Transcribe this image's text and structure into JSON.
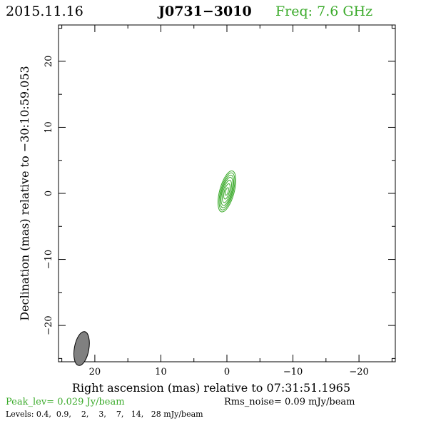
{
  "header": {
    "date": "2015.11.16",
    "source": "J0731−3010",
    "frequency": "Freq: 7.6 GHz"
  },
  "colors": {
    "contour": "#3aaa2a",
    "beam_fill": "#808080",
    "frequency_text": "#3aaa2a",
    "peak_text": "#3aaa2a"
  },
  "footer": {
    "peak": "Peak_lev=  0.029 Jy/beam",
    "rms": "Rms_noise= 0.09 mJy/beam",
    "levels": "Levels: 0.4,  0.9,    2,    3,    7,   14,   28 mJy/beam"
  },
  "chart_data": {
    "type": "contour",
    "xlabel": "Right ascension (mas) relative to 07:31:51.1965",
    "ylabel": "Declination (mas) relative to −30:10:59.053",
    "xlim": [
      25.5,
      -25.5
    ],
    "ylim": [
      -25.5,
      25.5
    ],
    "x_ticks": [
      20,
      10,
      0,
      -10,
      -20
    ],
    "y_ticks": [
      20,
      10,
      0,
      -10,
      -20
    ],
    "x_tick_labels": [
      "20",
      "10",
      "0",
      "−10",
      "−20"
    ],
    "y_tick_labels": [
      "20",
      "10",
      "0",
      "−10",
      "−20"
    ],
    "levels_mJy": [
      0.4,
      0.9,
      2,
      3,
      7,
      14,
      28
    ],
    "peak_Jy_per_beam": 0.029,
    "rms_mJy_per_beam": 0.09,
    "source_center": [
      0.0,
      0.3
    ],
    "contours": [
      {
        "level": 0.4,
        "semi_major": 3.2,
        "semi_minor": 1.1
      },
      {
        "level": 0.9,
        "semi_major": 2.9,
        "semi_minor": 0.95
      },
      {
        "level": 2,
        "semi_major": 2.55,
        "semi_minor": 0.82
      },
      {
        "level": 3,
        "semi_major": 2.2,
        "semi_minor": 0.7
      },
      {
        "level": 7,
        "semi_major": 1.75,
        "semi_minor": 0.55
      },
      {
        "level": 14,
        "semi_major": 1.2,
        "semi_minor": 0.38
      },
      {
        "level": 28,
        "semi_major": 0.6,
        "semi_minor": 0.2
      }
    ],
    "contour_pa_deg": 15,
    "beam": {
      "x": 22.0,
      "y": -23.5,
      "major": 2.6,
      "minor": 1.1,
      "pa_deg": 10
    }
  }
}
